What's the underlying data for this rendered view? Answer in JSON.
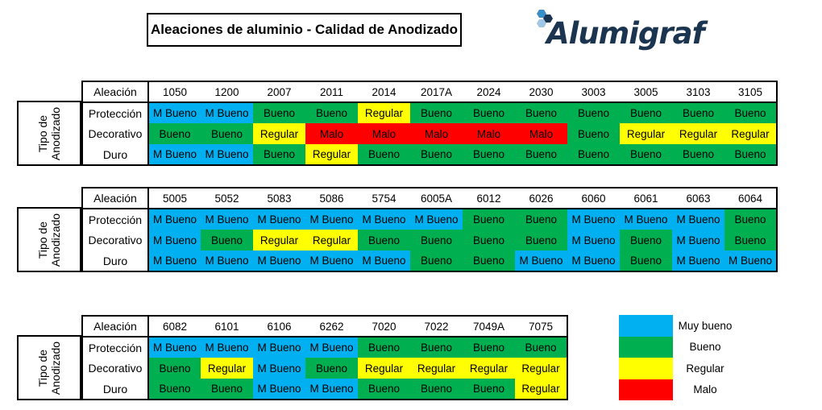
{
  "title": "Aleaciones de aluminio - Calidad de Anodizado",
  "logo": {
    "text": "Alumigraf"
  },
  "row_group_label": "Tipo de\nAnodizado",
  "header_label": "Aleación",
  "row_labels": [
    "Protección",
    "Decorativo",
    "Duro"
  ],
  "colors": {
    "muy_bueno": "#00b0f0",
    "bueno": "#00b050",
    "regular": "#ffff00",
    "malo": "#ff0000"
  },
  "tables": [
    {
      "alloys": [
        "1050",
        "1200",
        "2007",
        "2011",
        "2014",
        "2017A",
        "2024",
        "2030",
        "3003",
        "3005",
        "3103",
        "3105"
      ],
      "rows": [
        [
          "M Bueno",
          "M Bueno",
          "Bueno",
          "Bueno",
          "Regular",
          "Bueno",
          "Bueno",
          "Bueno",
          "Bueno",
          "Bueno",
          "Bueno",
          "Bueno"
        ],
        [
          "Bueno",
          "Bueno",
          "Regular",
          "Malo",
          "Malo",
          "Malo",
          "Malo",
          "Malo",
          "Bueno",
          "Regular",
          "Regular",
          "Regular"
        ],
        [
          "M Bueno",
          "M Bueno",
          "Bueno",
          "Regular",
          "Bueno",
          "Bueno",
          "Bueno",
          "Bueno",
          "Bueno",
          "Bueno",
          "Bueno",
          "Bueno"
        ]
      ]
    },
    {
      "alloys": [
        "5005",
        "5052",
        "5083",
        "5086",
        "5754",
        "6005A",
        "6012",
        "6026",
        "6060",
        "6061",
        "6063",
        "6064"
      ],
      "rows": [
        [
          "M Bueno",
          "M Bueno",
          "M Bueno",
          "M Bueno",
          "M Bueno",
          "M Bueno",
          "Bueno",
          "Bueno",
          "M Bueno",
          "M Bueno",
          "M Bueno",
          "Bueno"
        ],
        [
          "M Bueno",
          "Bueno",
          "Regular",
          "Regular",
          "Bueno",
          "Bueno",
          "Bueno",
          "Bueno",
          "M Bueno",
          "Bueno",
          "M Bueno",
          "Bueno"
        ],
        [
          "M Bueno",
          "M Bueno",
          "M Bueno",
          "M Bueno",
          "M Bueno",
          "Bueno",
          "Bueno",
          "M Bueno",
          "M Bueno",
          "Bueno",
          "M Bueno",
          "M Bueno"
        ]
      ]
    },
    {
      "alloys": [
        "6082",
        "6101",
        "6106",
        "6262",
        "7020",
        "7022",
        "7049A",
        "7075"
      ],
      "rows": [
        [
          "M Bueno",
          "M Bueno",
          "M Bueno",
          "M Bueno",
          "Bueno",
          "Bueno",
          "Bueno",
          "Bueno"
        ],
        [
          "Bueno",
          "Regular",
          "M Bueno",
          "Bueno",
          "Regular",
          "Regular",
          "Regular",
          "Regular"
        ],
        [
          "Bueno",
          "Bueno",
          "M Bueno",
          "M Bueno",
          "Bueno",
          "Bueno",
          "Bueno",
          "Regular"
        ]
      ]
    }
  ],
  "legend": [
    {
      "label": "Muy bueno",
      "color": "#00b0f0"
    },
    {
      "label": "Bueno",
      "color": "#00b050"
    },
    {
      "label": "Regular",
      "color": "#ffff00"
    },
    {
      "label": "Malo",
      "color": "#ff0000"
    }
  ]
}
